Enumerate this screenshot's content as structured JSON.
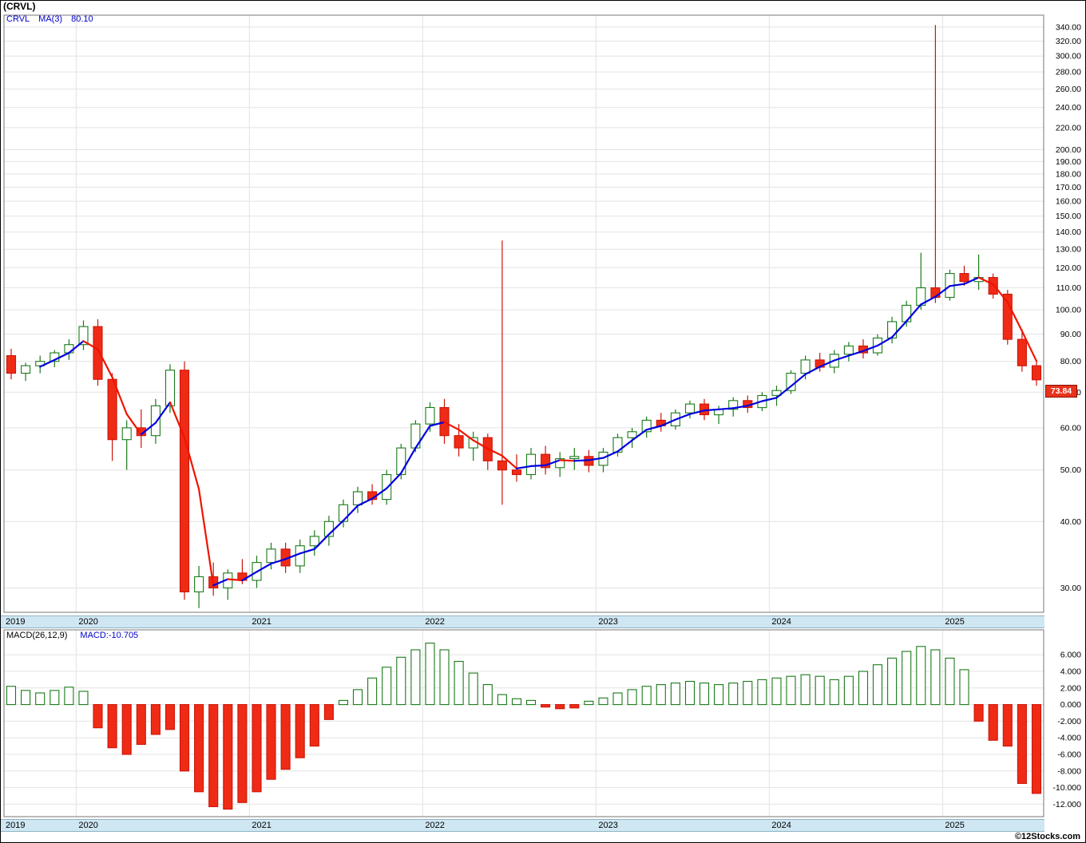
{
  "header": {
    "title": "(CRVL)"
  },
  "main_chart": {
    "legend": {
      "symbol": "CRVL",
      "ma_label": "MA(3)",
      "ma_value": "80.10"
    },
    "last_price_label": "73.84"
  },
  "macd_chart": {
    "params_label": "MACD(26,12,9)",
    "value_label": "MACD:-10.705"
  },
  "x_axis": {
    "years": [
      "2019",
      "2020",
      "2021",
      "2022",
      "2023",
      "2024",
      "2025"
    ]
  },
  "footer": {
    "credit": "©12Stocks.com"
  },
  "colors": {
    "up": "#1a7a1a",
    "down": "#cc1508",
    "down_fill": "#ef2b16",
    "ma_up": "#0000e0",
    "ma_down": "#f01400",
    "grid": "#e3e3e3",
    "band_bg": "#cfe7f3",
    "axis_text": "#000000",
    "last_price_bg": "#e8321e",
    "legend_blue": "#0000cc"
  },
  "chart_data": [
    {
      "type": "candlestick",
      "name": "CRVL monthly OHLC",
      "yscale": "log",
      "ylim": [
        27,
        358
      ],
      "yticks": [
        30,
        40,
        50,
        60,
        70,
        80,
        90,
        100,
        110,
        120,
        130,
        140,
        150,
        160,
        170,
        180,
        190,
        200,
        220,
        240,
        260,
        280,
        300,
        320,
        340
      ],
      "x": [
        "2019-08",
        "2019-09",
        "2019-10",
        "2019-11",
        "2019-12",
        "2020-01",
        "2020-02",
        "2020-03",
        "2020-04",
        "2020-05",
        "2020-06",
        "2020-07",
        "2020-08",
        "2020-09",
        "2020-10",
        "2020-11",
        "2020-12",
        "2021-01",
        "2021-02",
        "2021-03",
        "2021-04",
        "2021-05",
        "2021-06",
        "2021-07",
        "2021-08",
        "2021-09",
        "2021-10",
        "2021-11",
        "2021-12",
        "2022-01",
        "2022-02",
        "2022-03",
        "2022-04",
        "2022-05",
        "2022-06",
        "2022-07",
        "2022-08",
        "2022-09",
        "2022-10",
        "2022-11",
        "2022-12",
        "2023-01",
        "2023-02",
        "2023-03",
        "2023-04",
        "2023-05",
        "2023-06",
        "2023-07",
        "2023-08",
        "2023-09",
        "2023-10",
        "2023-11",
        "2023-12",
        "2024-01",
        "2024-02",
        "2024-03",
        "2024-04",
        "2024-05",
        "2024-06",
        "2024-07",
        "2024-08",
        "2024-09",
        "2024-10",
        "2024-11",
        "2024-12",
        "2025-01",
        "2025-02",
        "2025-03",
        "2025-04",
        "2025-05",
        "2025-06",
        "2025-07"
      ],
      "open": [
        82,
        76,
        78.5,
        80,
        83,
        86,
        93,
        74,
        57,
        60,
        58,
        66,
        77,
        29.5,
        31.5,
        30,
        32,
        31,
        33.5,
        35.5,
        33,
        36,
        37.5,
        40,
        43,
        45.5,
        44,
        49,
        55,
        61,
        65.5,
        58,
        55,
        57.5,
        52,
        50,
        49,
        53.5,
        50.5,
        52.5,
        53,
        51,
        54,
        57.5,
        59,
        62,
        60.5,
        64,
        66.5,
        63.5,
        65,
        67.5,
        65.5,
        69,
        70.5,
        76,
        80.5,
        78,
        82.5,
        85.5,
        83,
        88.5,
        95,
        102,
        110,
        105.5,
        117,
        113,
        115,
        107,
        88,
        78.5
      ],
      "high": [
        84.5,
        79.5,
        82,
        84,
        88,
        95.5,
        96,
        76,
        62,
        65,
        68,
        79,
        80,
        33,
        33.5,
        32.5,
        34,
        34.5,
        36.5,
        36.5,
        37,
        38.5,
        41,
        44,
        46.5,
        47,
        50,
        56,
        62,
        67,
        68,
        61,
        59,
        58.5,
        135,
        53.5,
        55,
        55.5,
        54,
        55,
        54.5,
        55,
        58.5,
        60,
        63,
        64,
        65,
        67.5,
        68,
        66,
        68.5,
        69,
        70,
        72,
        77,
        82,
        83,
        84,
        87,
        88,
        90,
        97,
        104,
        128,
        343,
        119,
        121,
        127,
        117,
        109,
        92,
        80
      ],
      "low": [
        74,
        73.5,
        76,
        78,
        80.5,
        84,
        72,
        52,
        50,
        55,
        56,
        64,
        28.5,
        27.5,
        29,
        28.5,
        30.5,
        30,
        32.5,
        32,
        32,
        34.5,
        36,
        39,
        41.5,
        43,
        43,
        48,
        54,
        59,
        56,
        53,
        52,
        50,
        43,
        47.5,
        48,
        49,
        48.5,
        50,
        49.5,
        49.5,
        53,
        55,
        57.5,
        59,
        59.5,
        62.5,
        62,
        61,
        63,
        64,
        64.5,
        66,
        69.5,
        74,
        76.5,
        76,
        80,
        81,
        82,
        86.5,
        93,
        100,
        103,
        104,
        111,
        109,
        105,
        86,
        76.5,
        72
      ],
      "close": [
        76,
        78.5,
        80,
        83,
        86,
        93,
        74,
        57,
        60,
        58,
        66,
        77,
        29.5,
        31.5,
        30,
        32,
        31,
        33.5,
        35.5,
        33,
        36,
        37.5,
        40,
        43,
        45.5,
        44,
        49,
        55,
        61,
        65.5,
        58,
        55,
        57.5,
        52,
        50,
        49,
        53.5,
        50.5,
        52.5,
        53,
        51,
        54,
        57.5,
        59,
        62,
        60.5,
        64,
        66.5,
        63.5,
        65,
        67.5,
        65.5,
        69,
        70.5,
        76,
        80.5,
        78,
        82.5,
        85.5,
        83,
        88.5,
        95,
        102,
        110,
        105.5,
        117,
        113,
        115,
        107,
        88,
        78.5,
        73.84
      ],
      "overlays": [
        {
          "name": "MA(3)",
          "period": 3,
          "last": 80.1
        }
      ],
      "last_price": 73.84
    },
    {
      "type": "bar",
      "name": "MACD(26,12,9) histogram",
      "x_same_as": "candlestick series above (monthly)",
      "ylim": [
        -13.5,
        9
      ],
      "yticks": [
        6,
        4,
        2,
        0,
        -2,
        -4,
        -6,
        -8,
        -10,
        -12
      ],
      "values": [
        2.2,
        1.7,
        1.4,
        1.7,
        2.1,
        1.6,
        -2.8,
        -5.2,
        -6.0,
        -4.8,
        -3.6,
        -3.0,
        -8.0,
        -10.5,
        -12.3,
        -12.6,
        -11.8,
        -10.5,
        -9.0,
        -7.8,
        -6.4,
        -5.0,
        -1.8,
        0.5,
        1.8,
        3.2,
        4.5,
        5.7,
        6.6,
        7.4,
        6.6,
        5.2,
        3.8,
        2.4,
        1.2,
        0.7,
        0.5,
        -0.3,
        -0.5,
        -0.4,
        0.4,
        0.8,
        1.4,
        1.8,
        2.2,
        2.4,
        2.6,
        2.8,
        2.6,
        2.4,
        2.6,
        2.8,
        3.0,
        3.2,
        3.4,
        3.6,
        3.4,
        3.0,
        3.4,
        4.0,
        4.8,
        5.6,
        6.4,
        7.0,
        6.6,
        5.6,
        4.2,
        -2.0,
        -4.3,
        -5.0,
        -9.5,
        -10.705
      ],
      "last": -10.705
    }
  ]
}
